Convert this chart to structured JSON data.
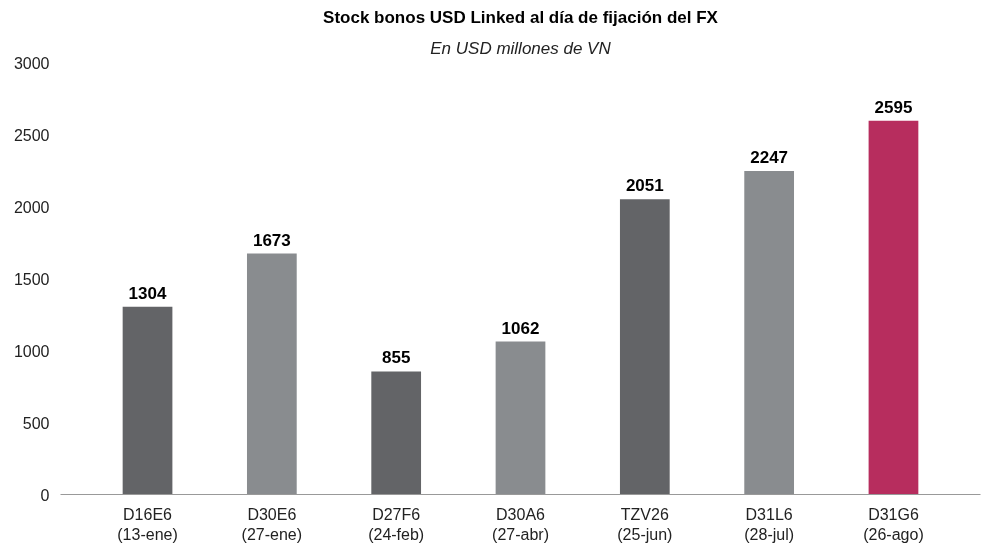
{
  "chart_data": {
    "type": "bar",
    "title": "Stock bonos USD Linked al día de fijación del FX",
    "subtitle": "En USD millones de VN",
    "categories": [
      "D16E6\n(13-ene)",
      "D30E6\n(27-ene)",
      "D27F6\n(24-feb)",
      "D30A6\n(27-abr)",
      "TZV26\n(25-jun)",
      "D31L6\n(28-jul)",
      "D31G6\n(26-ago)"
    ],
    "values": [
      1304,
      1673,
      855,
      1062,
      2051,
      2247,
      2595
    ],
    "colors": [
      "#636467",
      "#898c8f",
      "#636467",
      "#898c8f",
      "#636467",
      "#898c8f",
      "#b72d5e"
    ],
    "ylim": [
      0,
      3000
    ],
    "yticks": [
      0,
      500,
      1000,
      1500,
      2000,
      2500,
      3000
    ],
    "data_labels": true,
    "grid": false
  }
}
